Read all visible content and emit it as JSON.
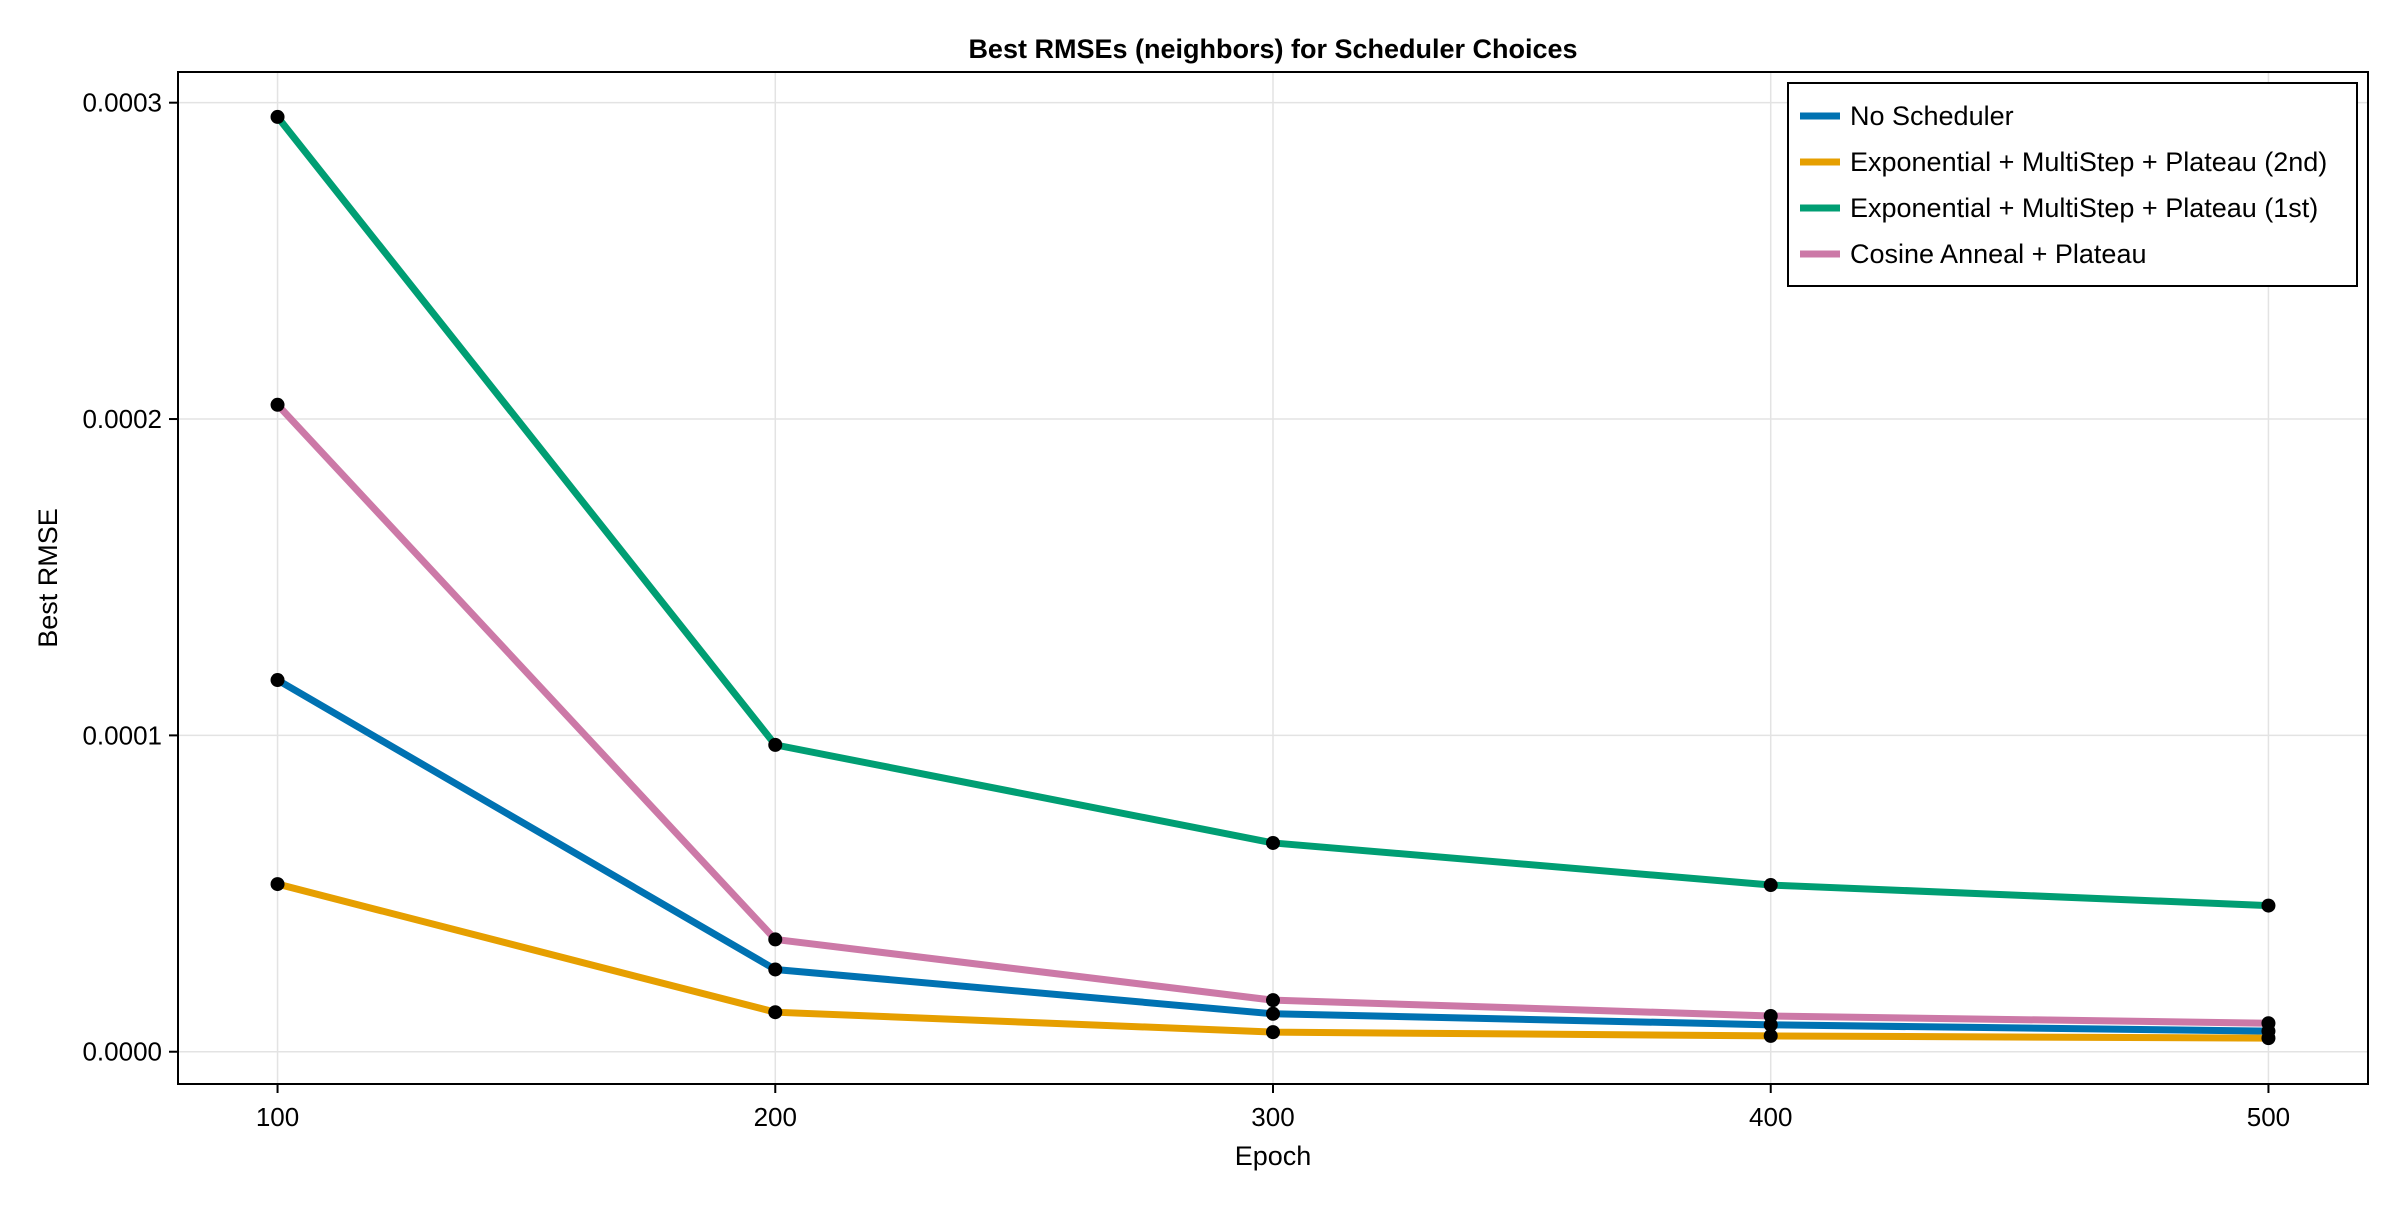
{
  "chart_data": {
    "type": "line",
    "title": "Best RMSEs (neighbors) for Scheduler Choices",
    "xlabel": "Epoch",
    "ylabel": "Best RMSE",
    "x": [
      100,
      200,
      300,
      400,
      500
    ],
    "xticks": [
      "100",
      "200",
      "300",
      "400",
      "500"
    ],
    "yticks": [
      "0.0000",
      "0.0001",
      "0.0002",
      "0.0003"
    ],
    "ytick_values": [
      0,
      0.0001,
      0.0002,
      0.0003
    ],
    "xlim": [
      80,
      520
    ],
    "ylim": [
      -1.02e-05,
      0.0003097
    ],
    "grid": true,
    "legend_position": "top-right",
    "marker_color": "#000000",
    "series": [
      {
        "name": "No Scheduler",
        "color": "#0072b2",
        "values": [
          0.0001175,
          2.6e-05,
          1.2e-05,
          8.5e-06,
          6.5e-06
        ]
      },
      {
        "name": "Exponential + MultiStep + Plateau (2nd)",
        "color": "#e69f00",
        "values": [
          5.3e-05,
          1.25e-05,
          6.2e-06,
          5e-06,
          4.3e-06
        ]
      },
      {
        "name": "Exponential + MultiStep + Plateau (1st)",
        "color": "#009e73",
        "values": [
          0.0002955,
          9.7e-05,
          6.6e-05,
          5.27e-05,
          4.62e-05
        ]
      },
      {
        "name": "Cosine Anneal + Plateau",
        "color": "#cc79a7",
        "values": [
          0.0002045,
          3.55e-05,
          1.63e-05,
          1.13e-05,
          9e-06
        ]
      }
    ]
  }
}
